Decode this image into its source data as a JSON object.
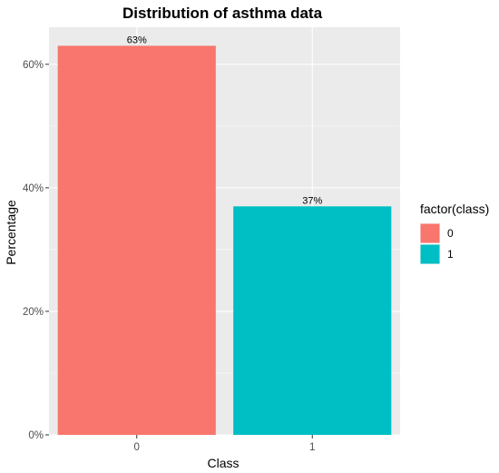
{
  "chart_data": {
    "type": "bar",
    "title": "Distribution of asthma data",
    "xlabel": "Class",
    "ylabel": "Percentage",
    "categories": [
      "0",
      "1"
    ],
    "values": [
      63,
      37
    ],
    "value_labels": [
      "63%",
      "37%"
    ],
    "y_ticks": [
      {
        "value": 0,
        "label": "0%"
      },
      {
        "value": 20,
        "label": "20%"
      },
      {
        "value": 40,
        "label": "40%"
      },
      {
        "value": 60,
        "label": "60%"
      }
    ],
    "ylim": [
      0,
      66
    ],
    "colors": [
      "#F8766D",
      "#00BFC4"
    ],
    "grid": true,
    "legend": {
      "title": "factor(class)",
      "placement": "right",
      "entries": [
        {
          "label": "0",
          "color": "#F8766D"
        },
        {
          "label": "1",
          "color": "#00BFC4"
        }
      ]
    }
  }
}
